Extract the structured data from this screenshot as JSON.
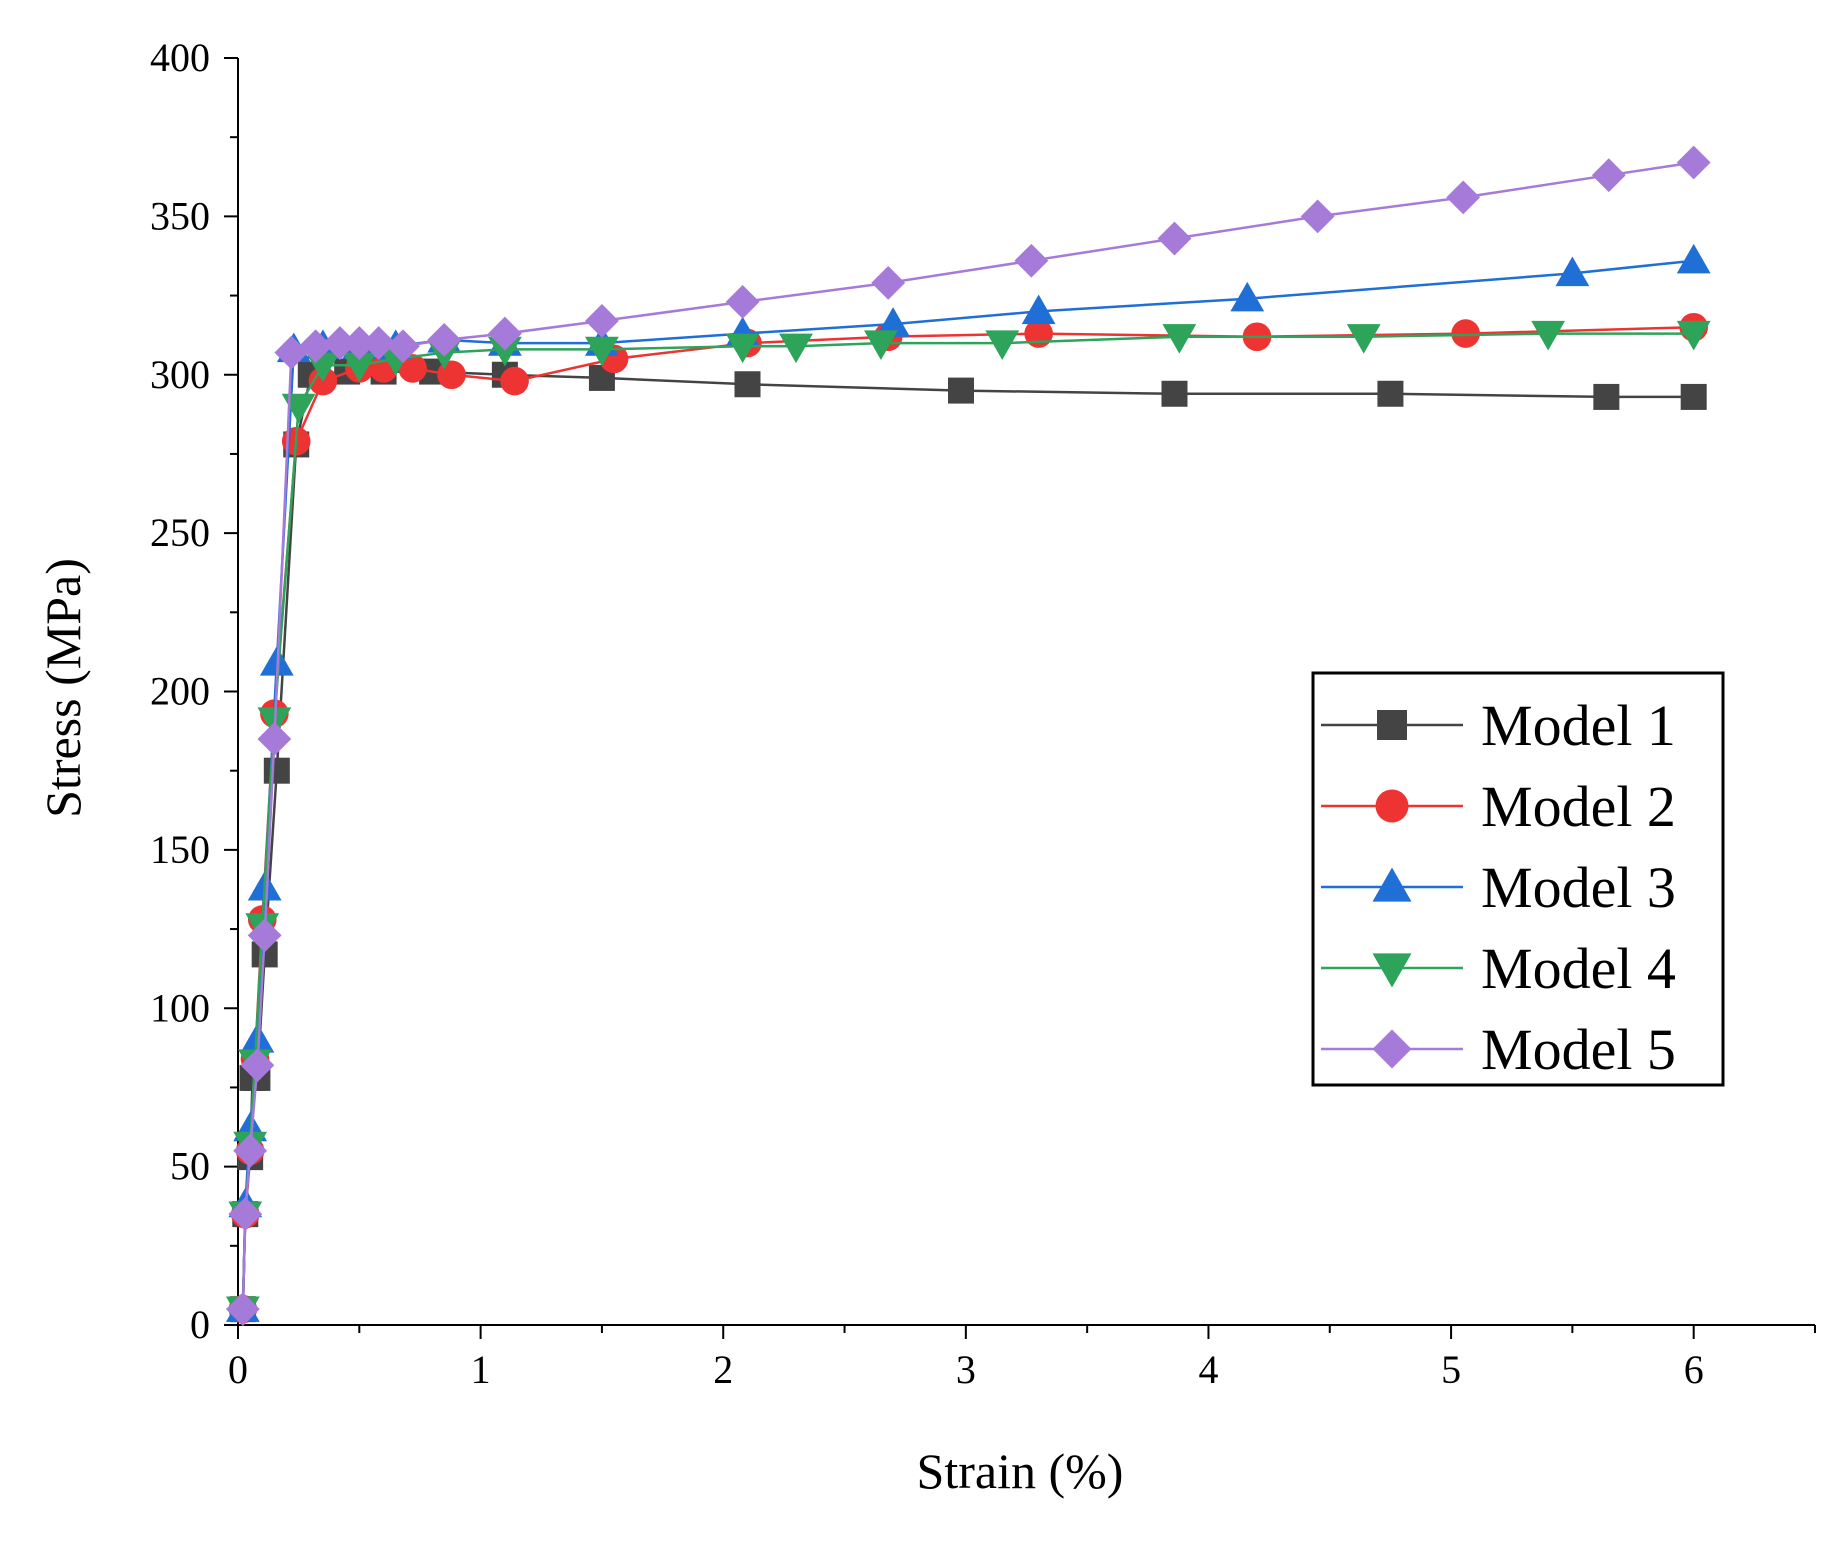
{
  "chart_data": {
    "type": "line",
    "title": "",
    "xlabel": "Strain (%)",
    "ylabel": "Stress (MPa)",
    "xlim": [
      0,
      6.5
    ],
    "ylim": [
      0,
      400
    ],
    "x_ticks": [
      0,
      1,
      2,
      3,
      4,
      5,
      6
    ],
    "y_ticks": [
      0,
      50,
      100,
      150,
      200,
      250,
      300,
      350,
      400
    ],
    "grid": false,
    "legend_position": "right",
    "series": [
      {
        "name": "Model 1",
        "color": "#444444",
        "marker": "square",
        "x": [
          0.02,
          0.03,
          0.05,
          0.06,
          0.08,
          0.11,
          0.16,
          0.24,
          0.3,
          0.45,
          0.6,
          0.8,
          1.1,
          1.5,
          2.1,
          2.98,
          3.86,
          4.75,
          5.64,
          6.0
        ],
        "y": [
          5,
          35,
          53,
          78,
          78,
          117,
          175,
          278,
          300,
          301,
          301,
          301,
          300,
          299,
          297,
          295,
          294,
          294,
          293,
          293
        ]
      },
      {
        "name": "Model 2",
        "color": "#ee3333",
        "marker": "circle",
        "x": [
          0.02,
          0.03,
          0.05,
          0.07,
          0.1,
          0.15,
          0.24,
          0.35,
          0.5,
          0.6,
          0.72,
          0.88,
          1.14,
          1.55,
          2.1,
          2.68,
          3.3,
          4.2,
          5.06,
          6.0
        ],
        "y": [
          5,
          35,
          55,
          84,
          128,
          193,
          279,
          298,
          302,
          302,
          302,
          300,
          298,
          305,
          310,
          312,
          313,
          312,
          313,
          315
        ]
      },
      {
        "name": "Model 3",
        "color": "#1f6fd6",
        "marker": "triangle-up",
        "x": [
          0.02,
          0.03,
          0.05,
          0.08,
          0.11,
          0.16,
          0.23,
          0.35,
          0.5,
          0.65,
          0.85,
          1.1,
          1.5,
          2.08,
          2.7,
          3.3,
          4.16,
          5.5,
          6.0
        ],
        "y": [
          5,
          38,
          62,
          90,
          138,
          209,
          308,
          309,
          309,
          309,
          311,
          310,
          310,
          313,
          316,
          320,
          324,
          332,
          336
        ]
      },
      {
        "name": "Model 4",
        "color": "#2ea35a",
        "marker": "triangle-down",
        "x": [
          0.02,
          0.03,
          0.05,
          0.07,
          0.1,
          0.15,
          0.25,
          0.35,
          0.5,
          0.65,
          0.85,
          1.1,
          1.5,
          2.08,
          2.3,
          2.65,
          3.15,
          3.88,
          4.64,
          5.4,
          6.0
        ],
        "y": [
          5,
          35,
          57,
          83,
          126,
          191,
          290,
          303,
          303,
          305,
          307,
          308,
          308,
          309,
          309,
          310,
          310,
          312,
          312,
          313,
          313
        ]
      },
      {
        "name": "Model 5",
        "color": "#a67ad8",
        "marker": "diamond",
        "x": [
          0.02,
          0.03,
          0.05,
          0.08,
          0.11,
          0.15,
          0.22,
          0.32,
          0.42,
          0.5,
          0.58,
          0.68,
          0.85,
          1.1,
          1.5,
          2.08,
          2.68,
          3.27,
          3.86,
          4.45,
          5.05,
          5.65,
          6.0
        ],
        "y": [
          5,
          35,
          55,
          82,
          123,
          185,
          307,
          309,
          310,
          310,
          310,
          309,
          311,
          313,
          317,
          323,
          329,
          336,
          343,
          350,
          356,
          363,
          367
        ]
      }
    ]
  }
}
